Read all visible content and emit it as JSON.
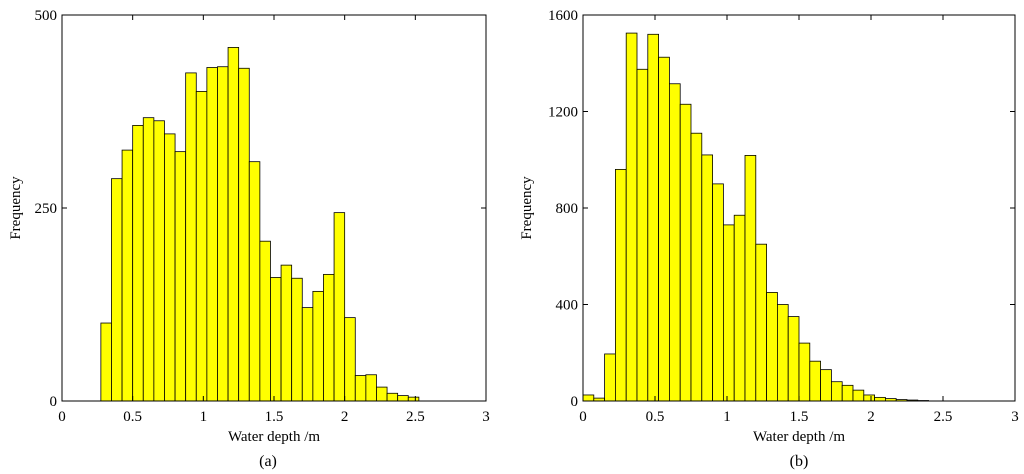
{
  "chart_data": [
    {
      "type": "bar",
      "panel_label": "(a)",
      "xlabel": "Water depth /m",
      "ylabel": "Frequency",
      "xlim": [
        0,
        3
      ],
      "ylim": [
        0,
        500
      ],
      "xticks": [
        "0",
        "0.5",
        "1",
        "1.5",
        "2",
        "2.5",
        "3"
      ],
      "yticks": [
        "0",
        "250",
        "500"
      ],
      "bin_width": 0.075,
      "bin_start": 0.2,
      "values": [
        0,
        101,
        288,
        325,
        357,
        367,
        363,
        346,
        323,
        425,
        401,
        432,
        433,
        458,
        431,
        310,
        207,
        160,
        176,
        159,
        121,
        142,
        164,
        244,
        108,
        33,
        34,
        18,
        10,
        7,
        5,
        0,
        0
      ],
      "bar_color": "#ffff00"
    },
    {
      "type": "bar",
      "panel_label": "(b)",
      "xlabel": "Water depth /m",
      "ylabel": "Frequency",
      "xlim": [
        0,
        3
      ],
      "ylim": [
        0,
        1600
      ],
      "xticks": [
        "0",
        "0.5",
        "1",
        "1.5",
        "2",
        "2.5",
        "3"
      ],
      "yticks": [
        "0",
        "400",
        "800",
        "1200",
        "1600"
      ],
      "bin_width": 0.075,
      "bin_start": 0.0,
      "values": [
        25,
        12,
        195,
        960,
        1525,
        1375,
        1520,
        1425,
        1315,
        1230,
        1110,
        1020,
        900,
        730,
        770,
        1018,
        650,
        450,
        400,
        350,
        240,
        165,
        130,
        80,
        65,
        45,
        25,
        15,
        10,
        6,
        4,
        2,
        0,
        0,
        0,
        0,
        0,
        0,
        0,
        0
      ],
      "bar_color": "#ffff00"
    }
  ]
}
